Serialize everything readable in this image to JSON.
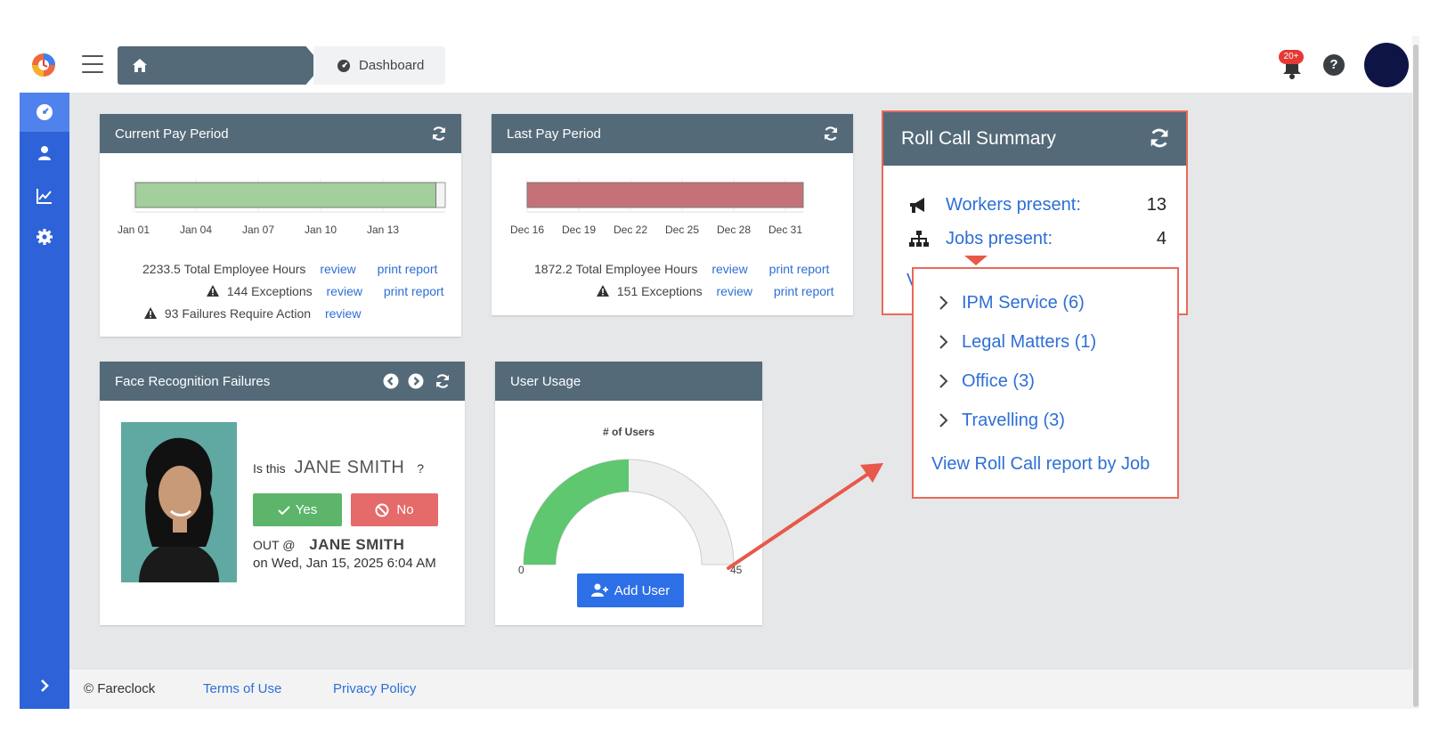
{
  "breadcrumb": {
    "current": "Dashboard"
  },
  "header": {
    "notification_count": "20+",
    "help_label": "?"
  },
  "sidebar": {
    "items": [
      "dashboard-icon",
      "users-icon",
      "chart-icon",
      "gear-icon"
    ]
  },
  "current_pay_period": {
    "title": "Current Pay Period",
    "chart_data": {
      "type": "bar",
      "orientation": "horizontal",
      "x_ticks": [
        "Jan 01",
        "Jan 04",
        "Jan 07",
        "Jan 10",
        "Jan 13"
      ],
      "bar_color": "#a3cf9c",
      "fill_fraction": 0.97
    },
    "total_hours": "2233.5 Total Employee Hours",
    "exceptions": "144 Exceptions",
    "failures": "93 Failures Require Action",
    "review": "review",
    "print_report": "print report"
  },
  "last_pay_period": {
    "title": "Last Pay Period",
    "chart_data": {
      "type": "bar",
      "orientation": "horizontal",
      "x_ticks": [
        "Dec 16",
        "Dec 19",
        "Dec 22",
        "Dec 25",
        "Dec 28",
        "Dec 31"
      ],
      "bar_color": "#c47277",
      "fill_fraction": 1.0
    },
    "total_hours": "1872.2 Total Employee Hours",
    "exceptions": "151 Exceptions",
    "review": "review",
    "print_report": "print report"
  },
  "face_recognition": {
    "title": "Face Recognition Failures",
    "question_prefix": "Is this",
    "question_name": "JANE SMITH",
    "question_suffix": "?",
    "yes_label": "Yes",
    "no_label": "No",
    "out_prefix": "OUT @",
    "out_name": "JANE SMITH",
    "timestamp": "on Wed, Jan 15, 2025 6:04 AM"
  },
  "user_usage": {
    "title": "User Usage",
    "chart_data": {
      "type": "gauge",
      "title": "# of Users",
      "min": 0,
      "max": 45,
      "value": 22.5,
      "min_label": "0",
      "max_label": "45",
      "fill_color": "#5fc76f"
    },
    "add_user_label": "Add User"
  },
  "roll_call": {
    "title": "Roll Call Summary",
    "workers_label": "Workers present:",
    "workers_value": "13",
    "jobs_label": "Jobs present:",
    "jobs_value": "4",
    "partial_hidden_text": "V",
    "dropdown": {
      "items": [
        "IPM Service (6)",
        "Legal Matters (1)",
        "Office (3)",
        "Travelling (3)"
      ],
      "report_link": "View Roll Call report by Job"
    }
  },
  "footer": {
    "copyright": "© Fareclock",
    "terms": "Terms of Use",
    "privacy": "Privacy Policy"
  },
  "colors": {
    "accent": "#2d6fd6",
    "panel_header": "#546a79",
    "sidebar": "#2d62d8",
    "annotation": "#e86a5a"
  }
}
